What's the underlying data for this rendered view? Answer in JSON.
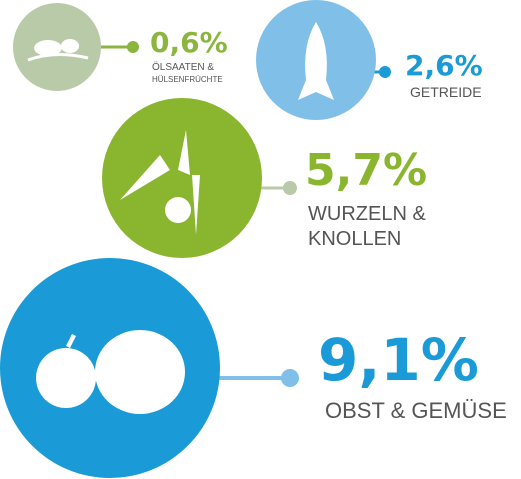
{
  "items": [
    {
      "percent": "0,6%",
      "label": [
        "ÖLSAATEN &",
        "HÜLSENFRÜCHTE"
      ]
    },
    {
      "percent": "2,6%",
      "label": [
        "GETREIDE"
      ]
    },
    {
      "percent": "5,7%",
      "label": [
        "WURZELN &",
        "KNOLLEN"
      ]
    },
    {
      "percent": "9,1%",
      "label": [
        "OBST & GEMÜSE"
      ]
    }
  ]
}
